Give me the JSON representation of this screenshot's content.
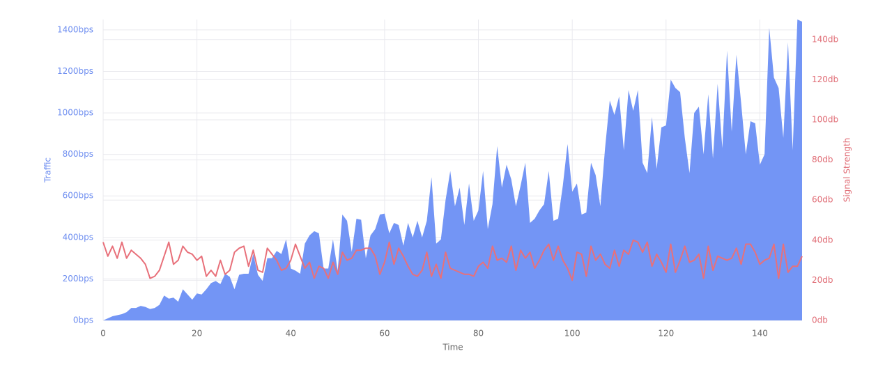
{
  "chart_data": {
    "type": "area-line",
    "xlabel": "Time",
    "x": [
      0,
      1,
      2,
      3,
      4,
      5,
      6,
      7,
      8,
      9,
      10,
      11,
      12,
      13,
      14,
      15,
      16,
      17,
      18,
      19,
      20,
      21,
      22,
      23,
      24,
      25,
      26,
      27,
      28,
      29,
      30,
      31,
      32,
      33,
      34,
      35,
      36,
      37,
      38,
      39,
      40,
      41,
      42,
      43,
      44,
      45,
      46,
      47,
      48,
      49,
      50,
      51,
      52,
      53,
      54,
      55,
      56,
      57,
      58,
      59,
      60,
      61,
      62,
      63,
      64,
      65,
      66,
      67,
      68,
      69,
      70,
      71,
      72,
      73,
      74,
      75,
      76,
      77,
      78,
      79,
      80,
      81,
      82,
      83,
      84,
      85,
      86,
      87,
      88,
      89,
      90,
      91,
      92,
      93,
      94,
      95,
      96,
      97,
      98,
      99,
      100,
      101,
      102,
      103,
      104,
      105,
      106,
      107,
      108,
      109,
      110,
      111,
      112,
      113,
      114,
      115,
      116,
      117,
      118,
      119,
      120,
      121,
      122,
      123,
      124,
      125,
      126,
      127,
      128,
      129,
      130,
      131,
      132,
      133,
      134,
      135,
      136,
      137,
      138,
      139,
      140,
      141,
      142,
      143,
      144,
      145,
      146,
      147,
      148,
      149
    ],
    "xlim": [
      0,
      149
    ],
    "xticks": [
      0,
      20,
      40,
      60,
      80,
      100,
      120,
      140
    ],
    "ylim": [
      0,
      1450
    ],
    "yticks": [
      {
        "value": 0,
        "label": "0bps"
      },
      {
        "value": 200,
        "label": "200bps"
      },
      {
        "value": 400,
        "label": "400bps"
      },
      {
        "value": 600,
        "label": "600bps"
      },
      {
        "value": 800,
        "label": "800bps"
      },
      {
        "value": 1000,
        "label": "1000bps"
      },
      {
        "value": 1200,
        "label": "1200bps"
      },
      {
        "value": 1400,
        "label": "1400bps"
      }
    ],
    "y2lim": [
      0,
      150
    ],
    "y2ticks": [
      {
        "value": 0,
        "label": "0db"
      },
      {
        "value": 20,
        "label": "20db"
      },
      {
        "value": 40,
        "label": "40db"
      },
      {
        "value": 60,
        "label": "60db"
      },
      {
        "value": 80,
        "label": "80db"
      },
      {
        "value": 100,
        "label": "100db"
      },
      {
        "value": 120,
        "label": "120db"
      },
      {
        "value": 140,
        "label": "140db"
      }
    ],
    "grid": true,
    "series": [
      {
        "name": "Traffic",
        "type": "area",
        "color": "#7395f5",
        "tick_color": "#6e8ef0",
        "values": [
          0,
          10,
          20,
          25,
          30,
          40,
          60,
          60,
          70,
          65,
          55,
          60,
          75,
          120,
          105,
          110,
          90,
          150,
          125,
          100,
          130,
          125,
          150,
          180,
          190,
          175,
          225,
          210,
          150,
          220,
          225,
          225,
          320,
          220,
          190,
          300,
          300,
          335,
          320,
          390,
          250,
          240,
          225,
          370,
          410,
          430,
          420,
          250,
          250,
          390,
          240,
          510,
          480,
          330,
          490,
          485,
          300,
          410,
          440,
          510,
          515,
          420,
          470,
          460,
          360,
          470,
          400,
          480,
          400,
          480,
          690,
          370,
          390,
          580,
          720,
          550,
          640,
          460,
          660,
          480,
          530,
          720,
          440,
          560,
          840,
          640,
          750,
          680,
          550,
          650,
          760,
          470,
          490,
          530,
          560,
          720,
          480,
          490,
          650,
          850,
          620,
          660,
          510,
          520,
          760,
          700,
          550,
          830,
          1060,
          990,
          1080,
          820,
          1110,
          1010,
          1110,
          760,
          710,
          980,
          730,
          930,
          940,
          1160,
          1120,
          1100,
          880,
          710,
          1000,
          1030,
          800,
          1090,
          780,
          1140,
          830,
          1300,
          910,
          1280,
          1050,
          800,
          960,
          950,
          750,
          800,
          1410,
          1170,
          1120,
          880,
          1340,
          820,
          1450,
          1440
        ]
      },
      {
        "name": "Signal Strength",
        "type": "line",
        "axis": "y2",
        "color": "#e8707a",
        "tick_color": "#e06c75",
        "values": [
          39,
          32,
          37,
          31,
          39,
          31,
          35,
          33,
          31,
          28,
          21,
          22,
          25,
          32,
          39,
          28,
          30,
          37,
          34,
          33,
          30,
          32,
          22,
          25,
          22,
          30,
          23,
          25,
          34,
          36,
          37,
          27,
          35,
          25,
          24,
          36,
          33,
          30,
          25,
          26,
          30,
          38,
          32,
          26,
          29,
          21,
          27,
          26,
          21,
          29,
          23,
          34,
          30,
          31,
          35,
          35,
          36,
          36,
          32,
          23,
          29,
          39,
          28,
          36,
          32,
          27,
          23,
          22,
          25,
          34,
          22,
          28,
          21,
          34,
          26,
          25,
          24,
          23,
          23,
          22,
          27,
          29,
          26,
          37,
          30,
          31,
          29,
          37,
          25,
          35,
          31,
          34,
          26,
          30,
          35,
          38,
          30,
          37,
          30,
          26,
          20,
          34,
          33,
          22,
          37,
          30,
          33,
          28,
          26,
          35,
          27,
          35,
          33,
          40,
          39,
          34,
          39,
          27,
          33,
          29,
          24,
          38,
          24,
          30,
          37,
          29,
          30,
          33,
          21,
          37,
          25,
          32,
          31,
          30,
          31,
          36,
          28,
          38,
          38,
          34,
          28,
          30,
          31,
          38,
          21,
          38,
          24,
          27,
          27,
          32
        ]
      }
    ]
  }
}
